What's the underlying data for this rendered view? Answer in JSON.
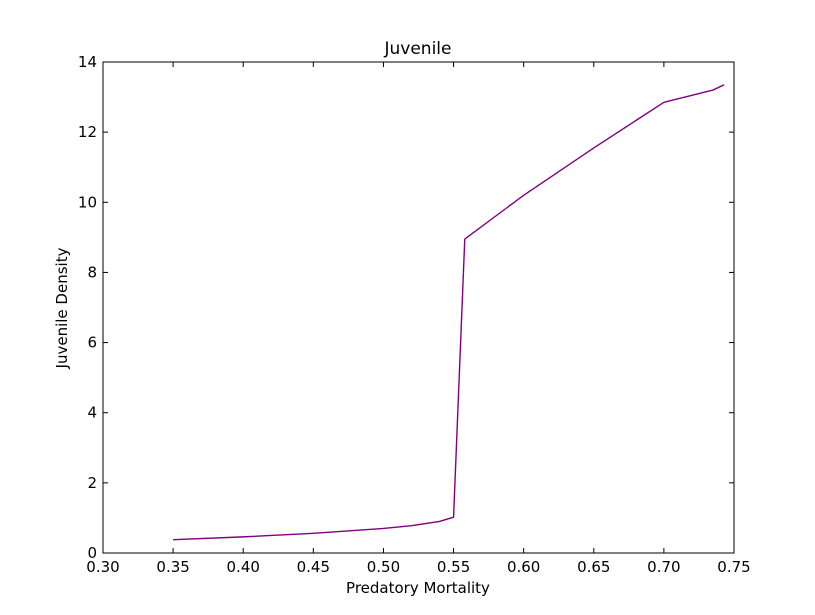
{
  "chart_data": {
    "type": "line",
    "title": "Juvenile",
    "xlabel": "Predatory Mortality",
    "ylabel": "Juvenile Density",
    "xlim": [
      0.3,
      0.75
    ],
    "ylim": [
      0,
      14
    ],
    "xticks": [
      "0.30",
      "0.35",
      "0.40",
      "0.45",
      "0.50",
      "0.55",
      "0.60",
      "0.65",
      "0.70",
      "0.75"
    ],
    "yticks": [
      "0",
      "2",
      "4",
      "6",
      "8",
      "10",
      "12",
      "14"
    ],
    "grid": false,
    "series": [
      {
        "color": "#800080",
        "x": [
          0.35,
          0.4,
          0.45,
          0.5,
          0.52,
          0.54,
          0.545,
          0.55,
          0.558,
          0.6,
          0.65,
          0.7,
          0.735,
          0.743
        ],
        "y": [
          0.38,
          0.46,
          0.56,
          0.7,
          0.78,
          0.9,
          0.96,
          1.02,
          8.95,
          10.2,
          11.55,
          12.85,
          13.2,
          13.35
        ]
      }
    ]
  }
}
